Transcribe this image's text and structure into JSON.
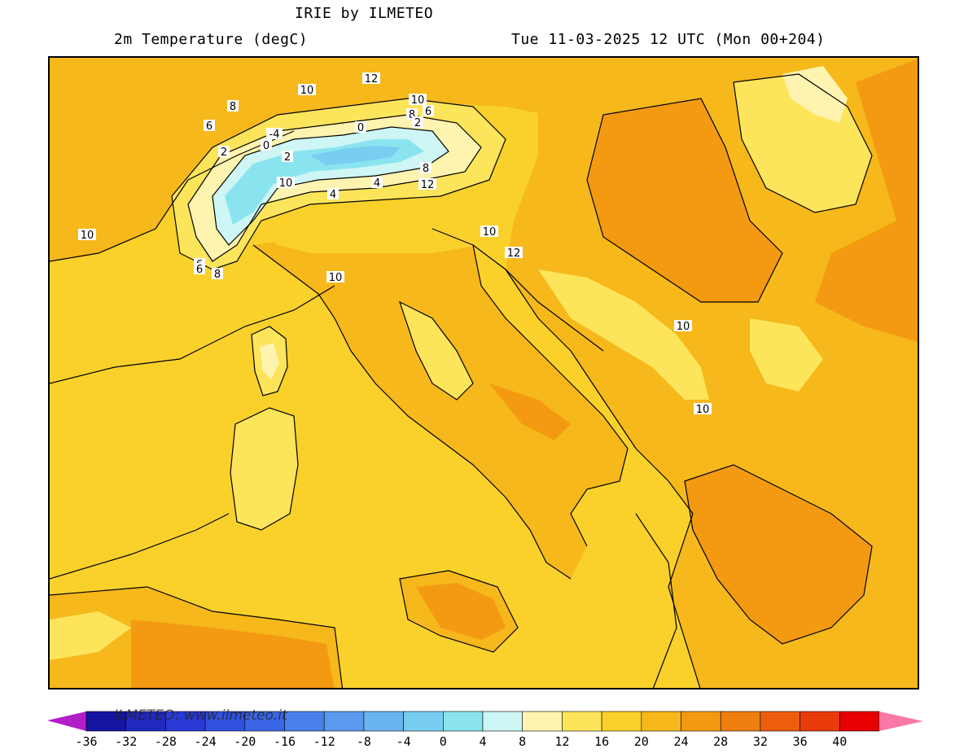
{
  "header": {
    "title": "IRIE by ILMETEO",
    "subtitle": "2m Temperature (degC)",
    "valid_time": "Tue 11-03-2025 12 UTC (Mon 00+204)"
  },
  "watermark": "ILMETEO: www.ilmeteo.it",
  "contour_labels": [
    "12",
    "10",
    "8",
    "6",
    "10",
    "8",
    "6",
    "4",
    "0",
    "-4",
    "2",
    "2",
    "0",
    "2",
    "8",
    "10",
    "4",
    "6",
    "12",
    "10",
    "10",
    "12",
    "6",
    "8",
    "10",
    "10",
    "10",
    "10"
  ],
  "legend": {
    "ticks": [
      "-36",
      "-32",
      "-28",
      "-24",
      "-20",
      "-16",
      "-12",
      "-8",
      "-4",
      "0",
      "4",
      "8",
      "12",
      "16",
      "20",
      "24",
      "28",
      "32",
      "36",
      "40"
    ],
    "colors": [
      "#1414a0",
      "#2028c0",
      "#2a3ad6",
      "#3050e0",
      "#3a66e6",
      "#4880ea",
      "#5a9aee",
      "#6ab4f0",
      "#78cef0",
      "#8ae4f0",
      "#cdf6f4",
      "#fff3b0",
      "#fce55a",
      "#f9d12a",
      "#f6b81a",
      "#f39a12",
      "#f07e10",
      "#ec5e0e",
      "#e83a0a",
      "#e80000"
    ],
    "low_cap_color": "#b21ec8",
    "high_cap_color": "#f878a6"
  },
  "map": {
    "sea_color": "#f9d12a",
    "land_warm_color": "#f6b81a",
    "land_hot_color": "#f39a12",
    "cold_color": "#fff3b0",
    "alps_color": "#8ae4f0"
  }
}
